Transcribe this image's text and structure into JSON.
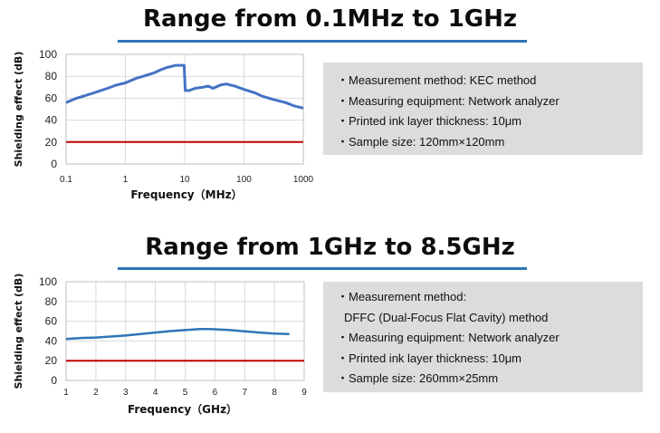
{
  "colors": {
    "accent": "#2e75b6",
    "series": "#4472c4",
    "series2": "#2e75b6",
    "threshold": "#c00000",
    "box": "#dcdcdc"
  },
  "sections": [
    {
      "title": "Range from 0.1MHz to 1GHz",
      "info": [
        "・Measurement method: KEC method",
        "・Measuring equipment: Network analyzer",
        "・Printed ink layer thickness: 10μm",
        "・Sample size: 120mm×120mm"
      ]
    },
    {
      "title": "Range from 1GHz to 8.5GHz",
      "info": [
        "・Measurement method:",
        "DFFC (Dual-Focus Flat Cavity) method",
        "・Measuring equipment: Network analyzer",
        "・Printed ink layer thickness: 10μm",
        "・Sample size: 260mm×25mm"
      ]
    }
  ],
  "chart_data": [
    {
      "type": "line",
      "xscale": "log",
      "xlim": [
        0.1,
        1000
      ],
      "ylim": [
        0,
        100
      ],
      "xticks": [
        "0.1",
        "1",
        "10",
        "100",
        "1000"
      ],
      "yticks": [
        "0",
        "20",
        "40",
        "60",
        "80",
        "100"
      ],
      "xlabel": "Frequency（MHz）",
      "ylabel": "Shielding effect (dB)",
      "grid": true,
      "series": [
        {
          "x": [
            0.1,
            0.15,
            0.2,
            0.3,
            0.5,
            0.7,
            1,
            1.5,
            2,
            3,
            4,
            5,
            6,
            7,
            8,
            9,
            9.8,
            10.2,
            12,
            15,
            20,
            25,
            30,
            40,
            50,
            70,
            100,
            150,
            200,
            300,
            500,
            700,
            1000
          ],
          "y": [
            56,
            60,
            62,
            65,
            69,
            72,
            74,
            78,
            80,
            83,
            86,
            88,
            89,
            90,
            90,
            90,
            90,
            67,
            67,
            69,
            70,
            71,
            69,
            72,
            73,
            71,
            68,
            65,
            62,
            59,
            56,
            53,
            51
          ]
        }
      ],
      "threshold": 20
    },
    {
      "type": "line",
      "xlim": [
        1,
        9
      ],
      "ylim": [
        0,
        100
      ],
      "xticks": [
        "1",
        "2",
        "3",
        "4",
        "5",
        "6",
        "7",
        "8",
        "9"
      ],
      "yticks": [
        "0",
        "20",
        "40",
        "60",
        "80",
        "100"
      ],
      "xlabel": "Frequency（GHz）",
      "ylabel": "Shielding effect (dB)",
      "grid": true,
      "series": [
        {
          "x": [
            1,
            1.5,
            2,
            2.5,
            3,
            3.5,
            4,
            4.5,
            5,
            5.5,
            5.8,
            6,
            6.5,
            7,
            7.5,
            8,
            8.5
          ],
          "y": [
            42,
            43,
            43.5,
            44.5,
            45.5,
            47,
            48.5,
            50,
            51,
            52,
            52,
            51.8,
            51,
            49.8,
            48.5,
            47.5,
            47
          ]
        }
      ],
      "threshold": 20
    }
  ]
}
